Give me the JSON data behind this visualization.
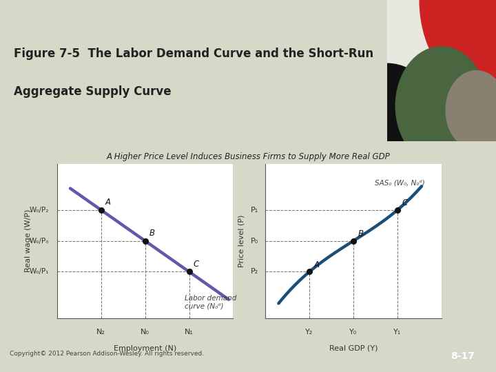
{
  "title_line1": "Figure 7-5  The Labor Demand Curve and the Short-Run",
  "title_line2": "Aggregate Supply Curve",
  "title_fontsize": 12,
  "subtitle": "A Higher Price Level Induces Business Firms to Supply More Real GDP",
  "subtitle_fontsize": 8.5,
  "bg_outer": "#d8d8c8",
  "bg_content": "#cccab8",
  "bg_white": "#ffffff",
  "header_bg": "#ffffff",
  "copyright_text": "Copyright© 2012 Pearson Addison-Wesley. All rights reserved.",
  "page_num": "8-17",
  "page_num_bg": "#4a6b4a",
  "separator_color": "#8a9a6a",
  "left_panel": {
    "xlabel": "Employment (N)",
    "ylabel": "Real wage (W/P)",
    "xtick_labels": [
      "N₂",
      "N₀",
      "N₁"
    ],
    "ytick_labels": [
      "W₀/P₁",
      "W₀/P₀",
      "W₀/P₂"
    ],
    "curve_color": "#6655aa",
    "curve_lw": 3.2,
    "point_A": [
      1.0,
      2.8
    ],
    "point_B": [
      2.0,
      2.0
    ],
    "point_C": [
      3.0,
      1.2
    ],
    "label_curve": "Labor demand\ncurve (N₀ᵈ)",
    "dashed_color": "#777777",
    "dot_color": "#111111"
  },
  "right_panel": {
    "xlabel": "Real GDP (Y)",
    "ylabel": "Price level (P)",
    "xtick_labels": [
      "Y₂",
      "Y₀",
      "Y₁"
    ],
    "ytick_labels": [
      "P₂",
      "P₀",
      "P₁"
    ],
    "curve_color": "#1a4f7a",
    "curve_lw": 3.2,
    "label_curve": "SAS₀ (W₀, N₀ᵈ)",
    "point_A": [
      1.0,
      1.2
    ],
    "point_B": [
      2.0,
      2.0
    ],
    "point_C": [
      3.0,
      2.8
    ],
    "dashed_color": "#777777",
    "dot_color": "#111111"
  },
  "deco_colors": {
    "bg": "#2a2520",
    "red": "#cc2222",
    "white": "#e8e8e0",
    "green": "#4a6640",
    "gray": "#888070",
    "black": "#111111"
  }
}
